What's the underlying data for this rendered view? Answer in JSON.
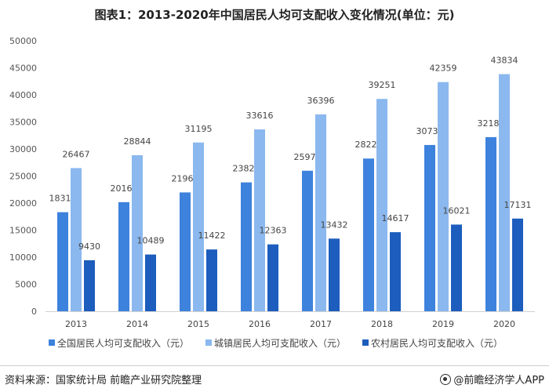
{
  "chart_data": {
    "type": "bar",
    "title": "图表1：2013-2020年中国居民人均可支配收入变化情况(单位：元)",
    "categories": [
      "2013",
      "2014",
      "2015",
      "2016",
      "2017",
      "2018",
      "2019",
      "2020"
    ],
    "series": [
      {
        "name": "全国居民人均可支配收入（元）",
        "color": "#3d82dd",
        "values": [
          18311,
          20167,
          21966,
          23821,
          25974,
          28228,
          30733,
          32189
        ]
      },
      {
        "name": "城镇居民人均可支配收入（元）",
        "color": "#8bb8ee",
        "values": [
          26467,
          28844,
          31195,
          33616,
          36396,
          39251,
          42359,
          43834
        ]
      },
      {
        "name": "农村居民人均可支配收入（元）",
        "color": "#1c5dbd",
        "values": [
          9430,
          10489,
          11422,
          12363,
          13432,
          14617,
          16021,
          17131
        ]
      }
    ],
    "ylim": [
      0,
      50000
    ],
    "yticks": [
      "0",
      "5000",
      "10000",
      "15000",
      "20000",
      "25000",
      "30000",
      "35000",
      "40000",
      "45000",
      "50000"
    ],
    "grid": false,
    "legend": "bottom",
    "xlabel": "",
    "ylabel": ""
  },
  "footer": {
    "source": "资料来源：国家统计局 前瞻产业研究院整理",
    "brand": "@前瞻经济学人APP"
  }
}
